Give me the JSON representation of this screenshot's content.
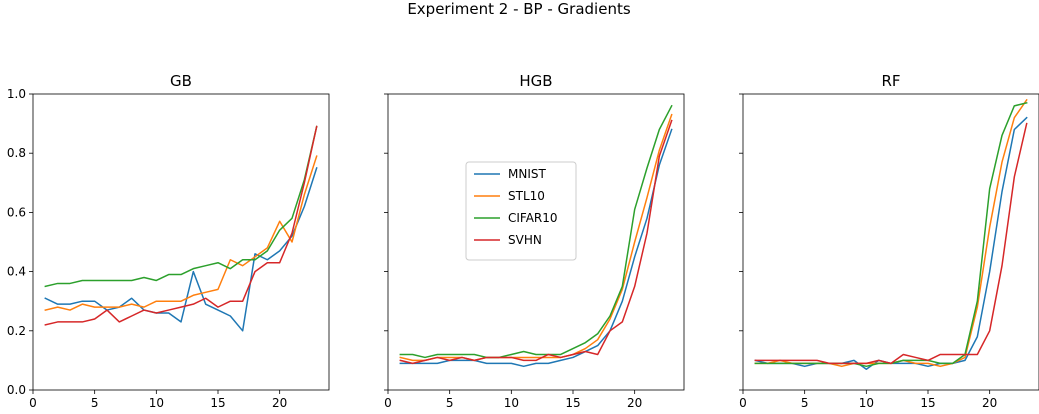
{
  "suptitle": "Experiment 2 - BP - Gradients",
  "chart_data": [
    {
      "type": "line",
      "title": "GB",
      "xlabel": "",
      "ylabel": "",
      "xlim": [
        0,
        24
      ],
      "ylim": [
        0,
        1
      ],
      "xticks": [
        0,
        5,
        10,
        15,
        20
      ],
      "yticks": [
        0.0,
        0.2,
        0.4,
        0.6,
        0.8,
        1.0
      ],
      "x": [
        1,
        2,
        3,
        4,
        5,
        6,
        7,
        8,
        9,
        10,
        11,
        12,
        13,
        14,
        15,
        16,
        17,
        18,
        19,
        20,
        21,
        22,
        23
      ],
      "series": [
        {
          "name": "MNIST",
          "color": "#1f77b4",
          "values": [
            0.31,
            0.29,
            0.29,
            0.3,
            0.3,
            0.27,
            0.28,
            0.31,
            0.27,
            0.26,
            0.26,
            0.23,
            0.4,
            0.29,
            0.27,
            0.25,
            0.2,
            0.46,
            0.44,
            0.47,
            0.52,
            0.62,
            0.75
          ]
        },
        {
          "name": "STL10",
          "color": "#ff7f0e",
          "values": [
            0.27,
            0.28,
            0.27,
            0.29,
            0.28,
            0.28,
            0.28,
            0.29,
            0.28,
            0.3,
            0.3,
            0.3,
            0.32,
            0.33,
            0.34,
            0.44,
            0.42,
            0.45,
            0.48,
            0.57,
            0.5,
            0.66,
            0.79
          ]
        },
        {
          "name": "CIFAR10",
          "color": "#2ca02c",
          "values": [
            0.35,
            0.36,
            0.36,
            0.37,
            0.37,
            0.37,
            0.37,
            0.37,
            0.38,
            0.37,
            0.39,
            0.39,
            0.41,
            0.42,
            0.43,
            0.41,
            0.44,
            0.44,
            0.47,
            0.54,
            0.58,
            0.71,
            0.89
          ]
        },
        {
          "name": "SVHN",
          "color": "#d62728",
          "values": [
            0.22,
            0.23,
            0.23,
            0.23,
            0.24,
            0.27,
            0.23,
            0.25,
            0.27,
            0.26,
            0.27,
            0.28,
            0.29,
            0.31,
            0.28,
            0.3,
            0.3,
            0.4,
            0.43,
            0.43,
            0.53,
            0.7,
            0.89
          ]
        }
      ]
    },
    {
      "type": "line",
      "title": "HGB",
      "xlabel": "",
      "ylabel": "",
      "xlim": [
        0,
        24
      ],
      "ylim": [
        0,
        1
      ],
      "xticks": [
        0,
        5,
        10,
        15,
        20
      ],
      "yticks": [
        0.0,
        0.2,
        0.4,
        0.6,
        0.8,
        1.0
      ],
      "legend": "center",
      "x": [
        1,
        2,
        3,
        4,
        5,
        6,
        7,
        8,
        9,
        10,
        11,
        12,
        13,
        14,
        15,
        16,
        17,
        18,
        19,
        20,
        21,
        22,
        23
      ],
      "series": [
        {
          "name": "MNIST",
          "color": "#1f77b4",
          "values": [
            0.09,
            0.09,
            0.09,
            0.09,
            0.1,
            0.1,
            0.1,
            0.09,
            0.09,
            0.09,
            0.08,
            0.09,
            0.09,
            0.1,
            0.11,
            0.13,
            0.15,
            0.2,
            0.3,
            0.45,
            0.58,
            0.76,
            0.88
          ]
        },
        {
          "name": "STL10",
          "color": "#ff7f0e",
          "values": [
            0.11,
            0.1,
            0.1,
            0.11,
            0.11,
            0.11,
            0.1,
            0.11,
            0.11,
            0.11,
            0.11,
            0.11,
            0.11,
            0.11,
            0.12,
            0.14,
            0.17,
            0.24,
            0.34,
            0.5,
            0.65,
            0.81,
            0.93
          ]
        },
        {
          "name": "CIFAR10",
          "color": "#2ca02c",
          "values": [
            0.12,
            0.12,
            0.11,
            0.12,
            0.12,
            0.12,
            0.12,
            0.11,
            0.11,
            0.12,
            0.13,
            0.12,
            0.12,
            0.12,
            0.14,
            0.16,
            0.19,
            0.25,
            0.35,
            0.61,
            0.75,
            0.88,
            0.96
          ]
        },
        {
          "name": "SVHN",
          "color": "#d62728",
          "values": [
            0.1,
            0.09,
            0.1,
            0.11,
            0.1,
            0.11,
            0.1,
            0.11,
            0.11,
            0.11,
            0.1,
            0.1,
            0.12,
            0.11,
            0.12,
            0.13,
            0.12,
            0.2,
            0.23,
            0.35,
            0.53,
            0.79,
            0.91
          ]
        }
      ]
    },
    {
      "type": "line",
      "title": "RF",
      "xlabel": "",
      "ylabel": "",
      "xlim": [
        0,
        24
      ],
      "ylim": [
        0,
        1
      ],
      "xticks": [
        0,
        5,
        10,
        15,
        20
      ],
      "yticks": [
        0.0,
        0.2,
        0.4,
        0.6,
        0.8,
        1.0
      ],
      "x": [
        1,
        2,
        3,
        4,
        5,
        6,
        7,
        8,
        9,
        10,
        11,
        12,
        13,
        14,
        15,
        16,
        17,
        18,
        19,
        20,
        21,
        22,
        23
      ],
      "series": [
        {
          "name": "MNIST",
          "color": "#1f77b4",
          "values": [
            0.1,
            0.09,
            0.09,
            0.09,
            0.08,
            0.09,
            0.09,
            0.09,
            0.1,
            0.07,
            0.1,
            0.09,
            0.09,
            0.09,
            0.08,
            0.09,
            0.09,
            0.1,
            0.18,
            0.4,
            0.67,
            0.88,
            0.92
          ]
        },
        {
          "name": "STL10",
          "color": "#ff7f0e",
          "values": [
            0.09,
            0.09,
            0.1,
            0.09,
            0.09,
            0.09,
            0.09,
            0.08,
            0.09,
            0.09,
            0.09,
            0.09,
            0.1,
            0.09,
            0.09,
            0.08,
            0.09,
            0.11,
            0.28,
            0.55,
            0.77,
            0.92,
            0.98
          ]
        },
        {
          "name": "CIFAR10",
          "color": "#2ca02c",
          "values": [
            0.09,
            0.09,
            0.09,
            0.09,
            0.09,
            0.09,
            0.09,
            0.09,
            0.09,
            0.08,
            0.09,
            0.09,
            0.1,
            0.1,
            0.1,
            0.09,
            0.09,
            0.12,
            0.3,
            0.68,
            0.86,
            0.96,
            0.97
          ]
        },
        {
          "name": "SVHN",
          "color": "#d62728",
          "values": [
            0.1,
            0.1,
            0.1,
            0.1,
            0.1,
            0.1,
            0.09,
            0.09,
            0.09,
            0.09,
            0.1,
            0.09,
            0.12,
            0.11,
            0.1,
            0.12,
            0.12,
            0.12,
            0.12,
            0.2,
            0.42,
            0.72,
            0.9
          ]
        }
      ]
    }
  ]
}
